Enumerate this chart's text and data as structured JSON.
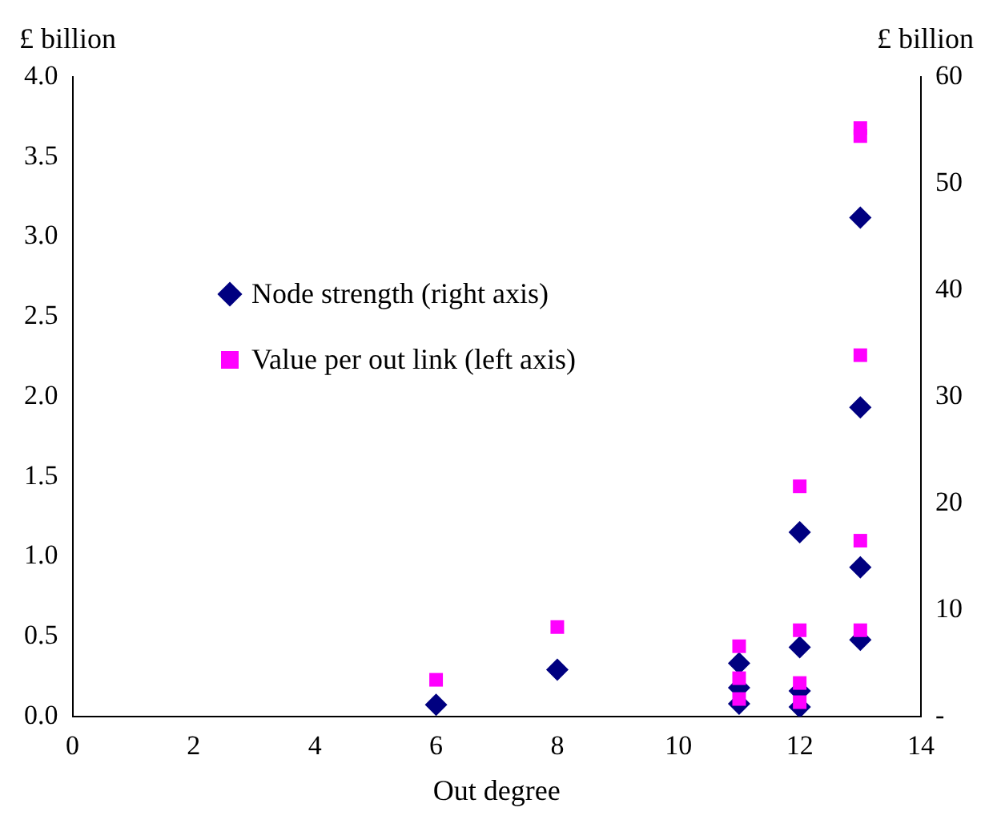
{
  "chart_data": {
    "type": "scatter",
    "xlabel": "Out degree",
    "ylabel": "£ billion",
    "y2label": "£ billion",
    "xlim": [
      0,
      14
    ],
    "xticks": [
      0,
      2,
      4,
      6,
      8,
      10,
      12,
      14
    ],
    "ylim": [
      0,
      4
    ],
    "yticks": [
      {
        "value": 0,
        "label": "0.0"
      },
      {
        "value": 0.5,
        "label": "0.5"
      },
      {
        "value": 1,
        "label": "1.0"
      },
      {
        "value": 1.5,
        "label": "1.5"
      },
      {
        "value": 2,
        "label": "2.0"
      },
      {
        "value": 2.5,
        "label": "2.5"
      },
      {
        "value": 3,
        "label": "3.0"
      },
      {
        "value": 3.5,
        "label": "3.5"
      },
      {
        "value": 4,
        "label": "4.0"
      }
    ],
    "y2lim": [
      0,
      60
    ],
    "y2ticks": [
      {
        "value": 0,
        "label": "-"
      },
      10,
      20,
      30,
      40,
      50,
      60
    ],
    "grid": false,
    "legend": "top left",
    "series": [
      {
        "name": "Node strength (right axis)",
        "color": "#000080",
        "axis": "y2",
        "marker": "diamond",
        "x": [
          6,
          8,
          11,
          11,
          11,
          12,
          12,
          12,
          12,
          13,
          13,
          13,
          13
        ],
        "values": [
          1.1,
          4.4,
          5.0,
          2.7,
          1.2,
          17.3,
          6.5,
          2.4,
          0.9,
          46.8,
          29.0,
          14.0,
          7.2
        ]
      },
      {
        "name": "Value per out link (left axis)",
        "color": "#ff00ff",
        "axis": "y",
        "marker": "square",
        "x": [
          6,
          8,
          11,
          11,
          11,
          12,
          12,
          12,
          12,
          13,
          13,
          13,
          13,
          13
        ],
        "values": [
          0.23,
          0.56,
          0.44,
          0.24,
          0.11,
          1.44,
          0.54,
          0.21,
          0.09,
          3.68,
          3.63,
          2.26,
          1.1,
          0.54
        ]
      }
    ]
  }
}
